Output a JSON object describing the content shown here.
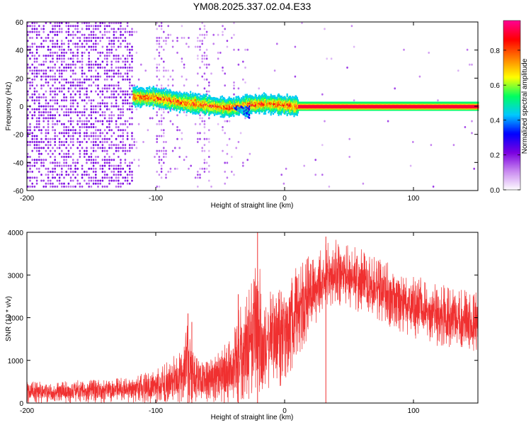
{
  "title": "YM08.2025.337.02.04.E33",
  "chart_data": [
    {
      "type": "heatmap",
      "xlabel": "Height of straight line (km)",
      "ylabel": "Frequency (Hz)",
      "xlim": [
        -200,
        150
      ],
      "ylim": [
        -60,
        60
      ],
      "x_ticks": [
        -200,
        -100,
        0,
        100
      ],
      "y_ticks": [
        -60,
        -40,
        -20,
        0,
        20,
        40,
        60
      ],
      "colorbar": {
        "label": "Normalized spectral amplitude",
        "range": [
          0,
          0.97
        ],
        "ticks": [
          0.0,
          0.2,
          0.4,
          0.6,
          0.8
        ],
        "colors": [
          "#ffffff",
          "#c98af0",
          "#7b00e0",
          "#0000ff",
          "#00c8ff",
          "#00ff60",
          "#ffff00",
          "#ff8000",
          "#ff0000",
          "#ff0090"
        ]
      },
      "features": {
        "noise_region_x": [
          -200,
          -118
        ],
        "sparse_noise_x": [
          -118,
          -30
        ],
        "signal_band": [
          {
            "x": -118,
            "freq": 7
          },
          {
            "x": -100,
            "freq": 6
          },
          {
            "x": -80,
            "freq": 3
          },
          {
            "x": -60,
            "freq": 1
          },
          {
            "x": -45,
            "freq": -1
          },
          {
            "x": -30,
            "freq": 1
          },
          {
            "x": -15,
            "freq": 2
          },
          {
            "x": 0,
            "freq": 1
          },
          {
            "x": 10,
            "freq": 0
          },
          {
            "x": 150,
            "freq": 0
          }
        ],
        "background_amplitude": 0.1,
        "signal_amplitude": 0.9
      }
    },
    {
      "type": "line",
      "xlabel": "Height of straight line (km)",
      "ylabel": "SNR (10 * v/v)",
      "xlim": [
        -200,
        150
      ],
      "ylim": [
        0,
        4000
      ],
      "x_ticks": [
        -200,
        -100,
        0,
        100
      ],
      "y_ticks": [
        0,
        1000,
        2000,
        3000,
        4000
      ],
      "color": "#f03030",
      "envelope": {
        "x": [
          -200,
          -150,
          -120,
          -100,
          -90,
          -80,
          -75,
          -70,
          -60,
          -50,
          -40,
          -35,
          -30,
          -25,
          -20,
          -18,
          -15,
          -10,
          0,
          10,
          20,
          30,
          40,
          50,
          60,
          80,
          100,
          120,
          150
        ],
        "low": [
          0,
          0,
          0,
          0,
          0,
          0,
          0,
          0,
          0,
          0,
          0,
          0,
          0,
          0,
          0,
          0,
          0,
          200,
          400,
          1000,
          1600,
          2000,
          2200,
          2200,
          2100,
          1800,
          1500,
          1300,
          1200
        ],
        "high": [
          500,
          550,
          600,
          800,
          1000,
          1300,
          1900,
          1200,
          1000,
          1300,
          1600,
          2300,
          2600,
          3000,
          3800,
          2400,
          2500,
          2700,
          2900,
          3200,
          3500,
          3700,
          3850,
          3700,
          3600,
          3300,
          3000,
          2800,
          2600
        ]
      },
      "spikes": [
        {
          "x": -75,
          "y": 2100
        },
        {
          "x": -72,
          "y": 1900
        },
        {
          "x": -36,
          "y": 2550
        },
        {
          "x": -21,
          "y": 4000
        },
        {
          "x": 32,
          "y": 3900
        }
      ]
    }
  ]
}
